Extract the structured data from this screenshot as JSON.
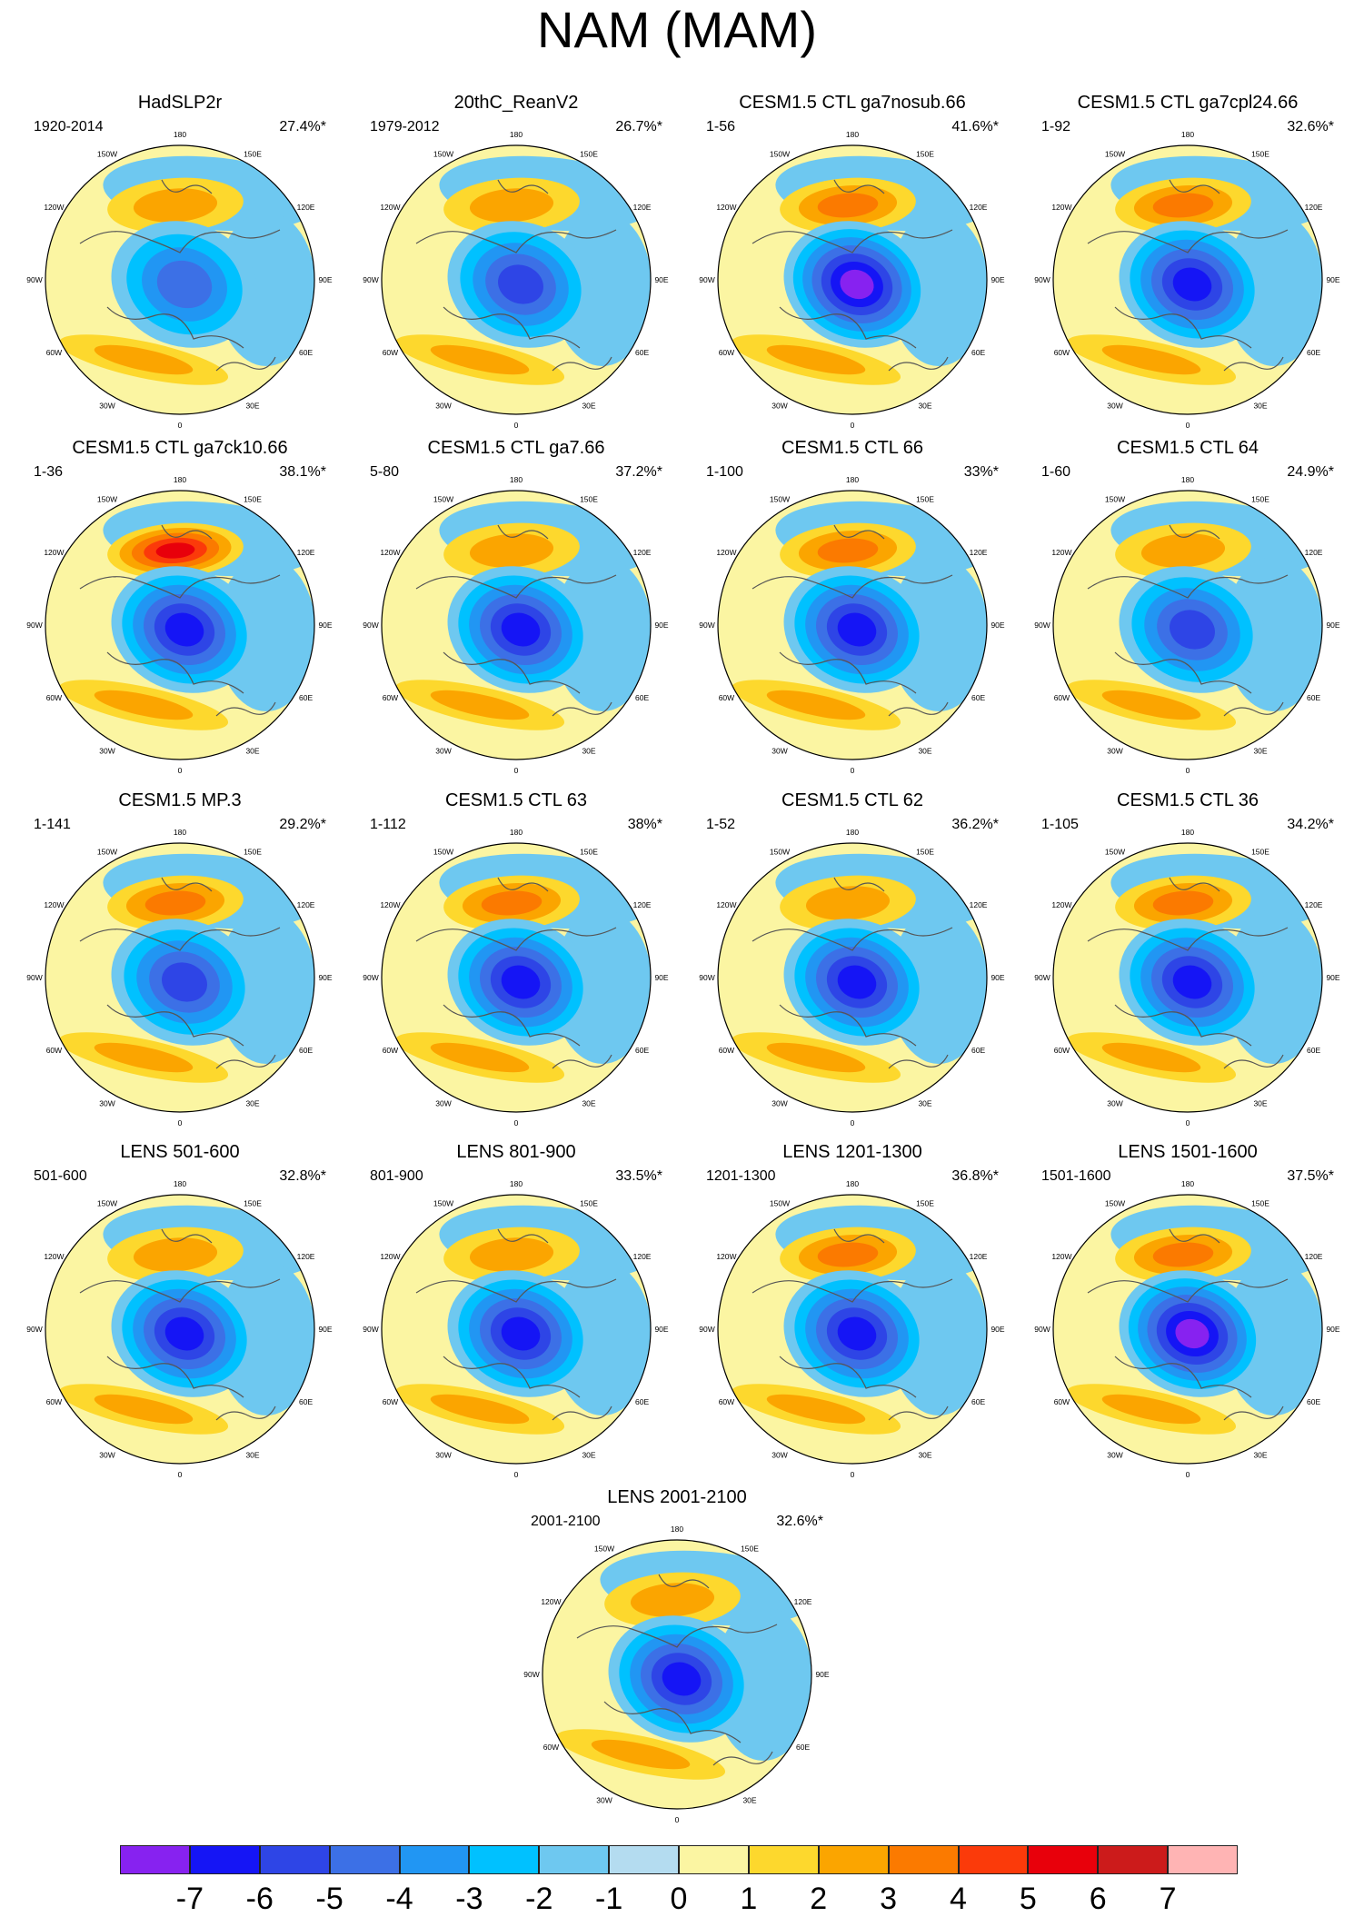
{
  "title": "NAM (MAM)",
  "map_labels": {
    "n180": "180",
    "w150": "150W",
    "e150": "150E",
    "w120": "120W",
    "e120": "120E",
    "w90": "90W",
    "e90": "90E",
    "w60": "60W",
    "e60": "60E",
    "w30": "30W",
    "e30": "30E",
    "n0": "0"
  },
  "panels": [
    {
      "title": "HadSLP2r",
      "period": "1920-2014",
      "pct": "27.4%*",
      "pos": 2,
      "neg": 4
    },
    {
      "title": "20thC_ReanV2",
      "period": "1979-2012",
      "pct": "26.7%*",
      "pos": 2,
      "neg": 5
    },
    {
      "title": "CESM1.5 CTL ga7nosub.66",
      "period": "1-56",
      "pct": "41.6%*",
      "pos": 3,
      "neg": 7
    },
    {
      "title": "CESM1.5 CTL ga7cpl24.66",
      "period": "1-92",
      "pct": "32.6%*",
      "pos": 3,
      "neg": 6
    },
    {
      "title": "CESM1.5 CTL ga7ck10.66",
      "period": "1-36",
      "pct": "38.1%*",
      "pos": 5,
      "neg": 6
    },
    {
      "title": "CESM1.5 CTL ga7.66",
      "period": "5-80",
      "pct": "37.2%*",
      "pos": 2,
      "neg": 6
    },
    {
      "title": "CESM1.5 CTL 66",
      "period": "1-100",
      "pct": "33%*",
      "pos": 3,
      "neg": 6
    },
    {
      "title": "CESM1.5 CTL 64",
      "period": "1-60",
      "pct": "24.9%*",
      "pos": 2,
      "neg": 5
    },
    {
      "title": "CESM1.5 MP.3",
      "period": "1-141",
      "pct": "29.2%*",
      "pos": 3,
      "neg": 5
    },
    {
      "title": "CESM1.5 CTL 63",
      "period": "1-112",
      "pct": "38%*",
      "pos": 3,
      "neg": 6
    },
    {
      "title": "CESM1.5 CTL 62",
      "period": "1-52",
      "pct": "36.2%*",
      "pos": 2,
      "neg": 6
    },
    {
      "title": "CESM1.5 CTL 36",
      "period": "1-105",
      "pct": "34.2%*",
      "pos": 3,
      "neg": 6
    },
    {
      "title": "LENS 501-600",
      "period": "501-600",
      "pct": "32.8%*",
      "pos": 2,
      "neg": 6
    },
    {
      "title": "LENS 801-900",
      "period": "801-900",
      "pct": "33.5%*",
      "pos": 2,
      "neg": 6
    },
    {
      "title": "LENS 1201-1300",
      "period": "1201-1300",
      "pct": "36.8%*",
      "pos": 3,
      "neg": 6
    },
    {
      "title": "LENS 1501-1600",
      "period": "1501-1600",
      "pct": "37.5%*",
      "pos": 3,
      "neg": 7
    },
    {
      "title": "LENS 2001-2100",
      "period": "2001-2100",
      "pct": "32.6%*",
      "pos": 2,
      "neg": 6
    }
  ],
  "colorbar": {
    "labels": [
      "-7",
      "-6",
      "-5",
      "-4",
      "-3",
      "-2",
      "-1",
      "0",
      "1",
      "2",
      "3",
      "4",
      "5",
      "6",
      "7"
    ],
    "colors": [
      "#8722f0",
      "#1515f5",
      "#2e45e6",
      "#3c70e6",
      "#2196f3",
      "#00c1ff",
      "#6ec8f0",
      "#b4dcf0",
      "#fbf5a2",
      "#fdd82d",
      "#fba500",
      "#fb7a00",
      "#fb3a0a",
      "#e8000b",
      "#cc1b1b",
      "#ffb4b4"
    ]
  }
}
